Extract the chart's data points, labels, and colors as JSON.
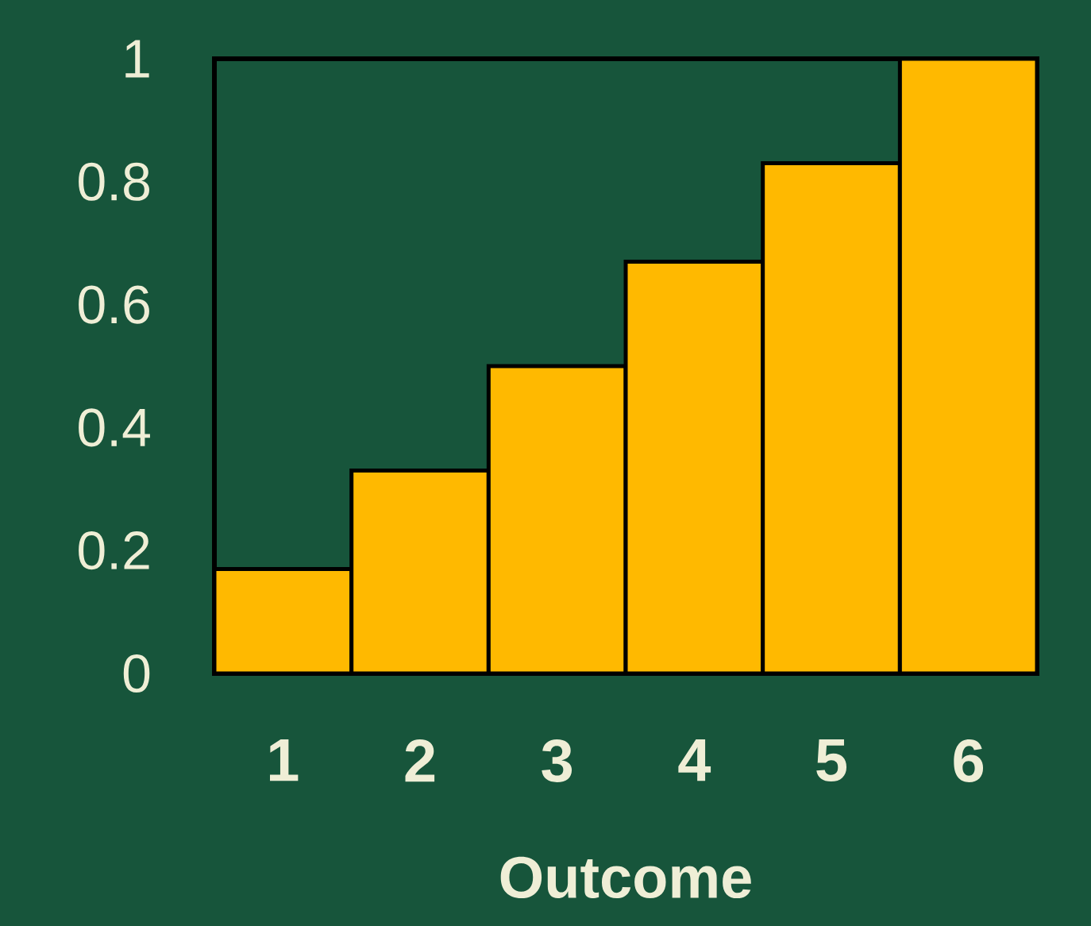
{
  "chart_data": {
    "type": "bar",
    "xlabel": "Outcome",
    "categories": [
      "1",
      "2",
      "3",
      "4",
      "5",
      "6"
    ],
    "values": [
      0.17,
      0.33,
      0.5,
      0.67,
      0.83,
      1
    ],
    "color": "#ffb900",
    "ylim": [
      0,
      1
    ],
    "yticks": [
      0,
      0.2,
      0.4,
      0.6,
      0.8,
      1
    ]
  }
}
